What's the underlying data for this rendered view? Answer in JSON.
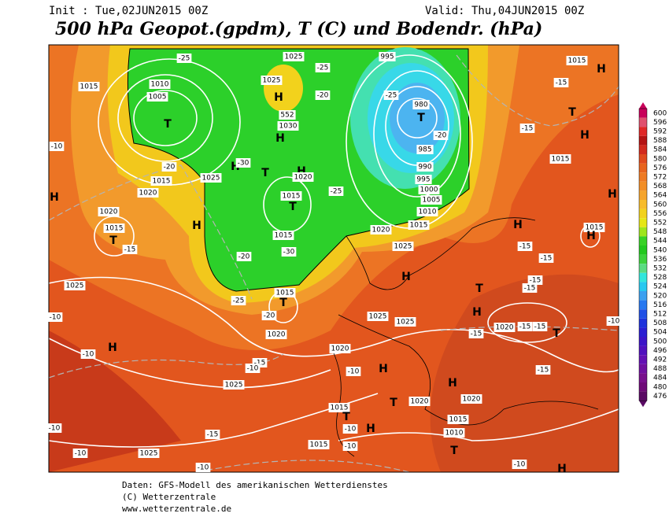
{
  "header": {
    "init": "Init : Tue,02JUN2015 00Z",
    "valid": "Valid: Thu,04JUN2015 00Z",
    "title": "500 hPa Geopot.(gpdm), T (C) und Bodendr. (hPa)"
  },
  "map": {
    "labels": [
      "1025",
      "1025",
      "1015",
      "H",
      "1015",
      "1010",
      "1005",
      "T",
      "-25",
      "H",
      "552",
      "1030",
      "H",
      "995",
      "-25",
      "-20",
      "-25",
      "980",
      "T",
      "985",
      "990",
      "995",
      "1000",
      "1005",
      "1010",
      "1015",
      "1020",
      "1025",
      "-20",
      "T",
      "-15",
      "-15",
      "H",
      "1015",
      "H",
      "1015",
      "H",
      "H",
      "T",
      "H",
      "1025",
      "1015",
      "1020",
      "-30",
      "1015",
      "T",
      "-25",
      "1020",
      "1015",
      "-30",
      "-20",
      "1020",
      "1015",
      "T",
      "-15",
      "H",
      "H",
      "-10",
      "-20",
      "H",
      "1025",
      "1015",
      "T",
      "-25",
      "-20",
      "1020",
      "-10",
      "H",
      "-10",
      "1025",
      "1025",
      "T",
      "H",
      "1020",
      "-15",
      "-15",
      "T",
      "-15",
      "-15",
      "-15",
      "H",
      "-15",
      "-15",
      "1020",
      "H",
      "-10",
      "-15",
      "-10",
      "1025",
      "H",
      "T",
      "1020",
      "1020",
      "1015",
      "T",
      "-10",
      "H",
      "1015",
      "1010",
      "1015",
      "-10",
      "-15",
      "-10",
      "1025",
      "-10",
      "T",
      "-10",
      "H",
      "-10",
      "-15",
      "-10"
    ]
  },
  "legend": {
    "labels": [
      600,
      596,
      592,
      588,
      584,
      580,
      576,
      572,
      568,
      564,
      560,
      556,
      552,
      548,
      544,
      540,
      536,
      532,
      528,
      524,
      520,
      516,
      512,
      508,
      504,
      500,
      496,
      492,
      488,
      484,
      480,
      476
    ],
    "colors": [
      "#c8005a",
      "#e0506e",
      "#e02828",
      "#b41414",
      "#d22a1e",
      "#e04a1e",
      "#e8641e",
      "#ee7a22",
      "#f28e26",
      "#f5a42c",
      "#f7bc2c",
      "#f2d21c",
      "#e6e616",
      "#9ee61c",
      "#38d226",
      "#22c81e",
      "#3cd23c",
      "#5adc82",
      "#32e6dc",
      "#28c8f0",
      "#3ca0f0",
      "#2878f0",
      "#2050e6",
      "#1e32dc",
      "#2a1ed2",
      "#3c14c8",
      "#5010be",
      "#6410b4",
      "#7010a0",
      "#78108c",
      "#6e0a78",
      "#5a0a64"
    ]
  },
  "footer": {
    "line1": "Daten: GFS-Modell des amerikanischen Wetterdienstes",
    "line2": "(C) Wetterzentrale",
    "line3": "www.wetterzentrale.de"
  }
}
